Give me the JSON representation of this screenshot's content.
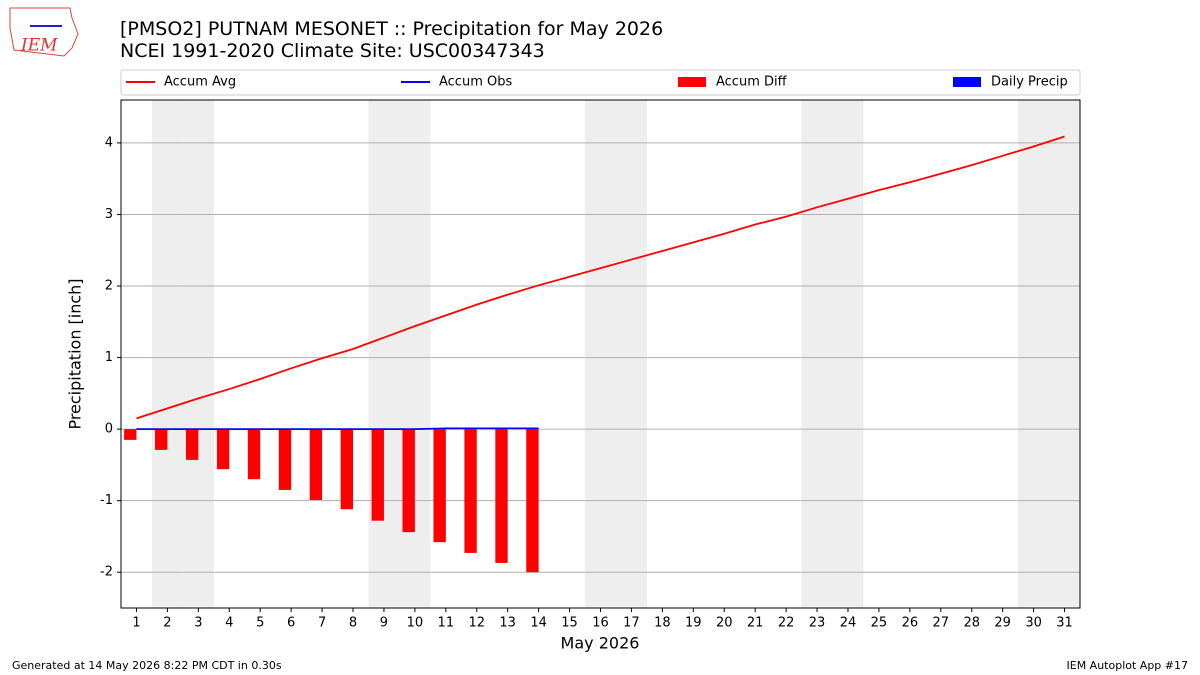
{
  "chart_data": {
    "type": "bar_line",
    "logo_text": "IEM",
    "title": "[PMSO2] PUTNAM MESONET :: Precipitation for May 2026",
    "subtitle": "NCEI 1991-2020 Climate Site: USC00347343",
    "xlabel": "May 2026",
    "ylabel": "Precipitation [inch]",
    "footer_left": "Generated at 14 May 2026 8:22 PM CDT in 0.30s",
    "footer_right": "IEM Autoplot App #17",
    "x": [
      1,
      2,
      3,
      4,
      5,
      6,
      7,
      8,
      9,
      10,
      11,
      12,
      13,
      14,
      15,
      16,
      17,
      18,
      19,
      20,
      21,
      22,
      23,
      24,
      25,
      26,
      27,
      28,
      29,
      30,
      31
    ],
    "xlim": [
      0.5,
      31.5
    ],
    "xticks": [
      1,
      2,
      3,
      4,
      5,
      6,
      7,
      8,
      9,
      10,
      11,
      12,
      13,
      14,
      15,
      16,
      17,
      18,
      19,
      20,
      21,
      22,
      23,
      24,
      25,
      26,
      27,
      28,
      29,
      30,
      31
    ],
    "ylim": [
      -2.5,
      4.6
    ],
    "yticks": [
      -2,
      -1,
      0,
      1,
      2,
      3,
      4
    ],
    "grid": true,
    "shaded_days": [
      2,
      3,
      9,
      10,
      16,
      17,
      23,
      24,
      30,
      31
    ],
    "series": [
      {
        "name": "Accum Avg",
        "kind": "line",
        "color": "#ff0000",
        "values": [
          0.15,
          0.29,
          0.43,
          0.56,
          0.7,
          0.85,
          0.99,
          1.12,
          1.28,
          1.44,
          1.59,
          1.74,
          1.88,
          2.01,
          2.13,
          2.25,
          2.37,
          2.49,
          2.61,
          2.73,
          2.86,
          2.97,
          3.1,
          3.22,
          3.34,
          3.45,
          3.57,
          3.69,
          3.82,
          3.95,
          4.09
        ]
      },
      {
        "name": "Accum Obs",
        "kind": "line",
        "color": "#0000ff",
        "values": [
          0,
          0,
          0,
          0,
          0,
          0,
          0,
          0,
          0,
          0,
          0.01,
          0.01,
          0.01,
          0.01,
          null,
          null,
          null,
          null,
          null,
          null,
          null,
          null,
          null,
          null,
          null,
          null,
          null,
          null,
          null,
          null,
          null
        ]
      },
      {
        "name": "Accum Diff",
        "kind": "bar",
        "offset": -1,
        "color": "#ff0000",
        "values": [
          -0.15,
          -0.29,
          -0.43,
          -0.56,
          -0.7,
          -0.85,
          -0.99,
          -1.12,
          -1.28,
          -1.44,
          -1.58,
          -1.73,
          -1.87,
          -2.0,
          null,
          null,
          null,
          null,
          null,
          null,
          null,
          null,
          null,
          null,
          null,
          null,
          null,
          null,
          null,
          null,
          null
        ]
      },
      {
        "name": "Daily Precip",
        "kind": "bar",
        "offset": 0,
        "color": "#0000ff",
        "values": [
          0,
          0,
          0,
          0,
          0,
          0,
          0,
          0,
          0,
          0,
          0.01,
          0,
          0,
          0,
          null,
          null,
          null,
          null,
          null,
          null,
          null,
          null,
          null,
          null,
          null,
          null,
          null,
          null,
          null,
          null,
          null
        ]
      }
    ]
  }
}
